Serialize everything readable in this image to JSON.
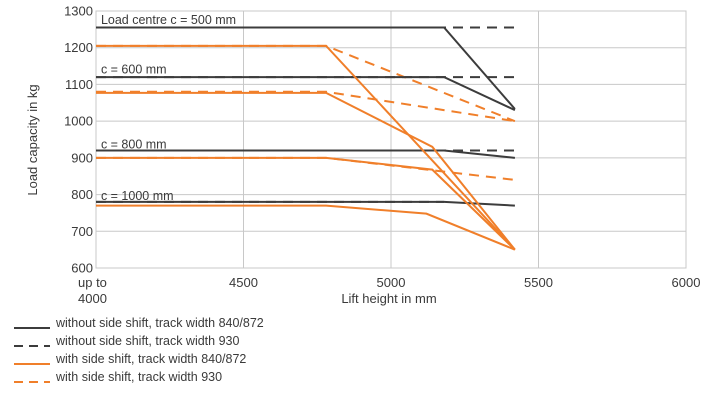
{
  "chart_data": {
    "type": "line",
    "xlabel": "Lift height in mm",
    "ylabel": "Load capacity in kg",
    "xlim": [
      4000,
      6000
    ],
    "ylim": [
      600,
      1300
    ],
    "x_ticks": [
      {
        "value": 4000,
        "lines": [
          "up to",
          "4000"
        ]
      },
      {
        "value": 4500,
        "lines": [
          "4500"
        ]
      },
      {
        "value": 5000,
        "lines": [
          "5000"
        ]
      },
      {
        "value": 5500,
        "lines": [
          "5500"
        ]
      },
      {
        "value": 6000,
        "lines": [
          "6000"
        ]
      }
    ],
    "y_ticks": [
      600,
      700,
      800,
      900,
      1000,
      1100,
      1200,
      1300
    ],
    "grid": true,
    "annotations": [
      {
        "text": "Load centre c = 500 mm",
        "x": 4010,
        "y": 1265
      },
      {
        "text": "c = 600 mm",
        "x": 4010,
        "y": 1130
      },
      {
        "text": "c = 800 mm",
        "x": 4010,
        "y": 925
      },
      {
        "text": "c = 1000 mm",
        "x": 4010,
        "y": 785
      }
    ],
    "styles": {
      "without_840": {
        "color": "#3c3c3c",
        "dash": "solid"
      },
      "without_930": {
        "color": "#3c3c3c",
        "dash": "dashed"
      },
      "with_840": {
        "color": "#f07f2a",
        "dash": "solid"
      },
      "with_930": {
        "color": "#f07f2a",
        "dash": "dashed"
      }
    },
    "series": [
      {
        "style": "without_930",
        "x": [
          4000,
          5180,
          5420
        ],
        "y": [
          1255,
          1255,
          1255
        ]
      },
      {
        "style": "without_930",
        "x": [
          4000,
          5180,
          5420
        ],
        "y": [
          1120,
          1120,
          1120
        ]
      },
      {
        "style": "without_930",
        "x": [
          4000,
          5180,
          5420
        ],
        "y": [
          920,
          920,
          920
        ]
      },
      {
        "style": "without_930",
        "x": [
          4000,
          5180
        ],
        "y": [
          780,
          780
        ]
      },
      {
        "style": "with_930",
        "x": [
          4000,
          4780,
          5420
        ],
        "y": [
          1205,
          1205,
          1000
        ]
      },
      {
        "style": "with_930",
        "x": [
          4000,
          4780,
          5420
        ],
        "y": [
          1080,
          1080,
          1000
        ]
      },
      {
        "style": "with_930",
        "x": [
          4000,
          4780,
          5420
        ],
        "y": [
          900,
          900,
          840
        ]
      },
      {
        "style": "without_840",
        "x": [
          4000,
          5180,
          5420
        ],
        "y": [
          1255,
          1255,
          1033
        ]
      },
      {
        "style": "without_840",
        "x": [
          4000,
          5180,
          5420
        ],
        "y": [
          1120,
          1120,
          1030
        ]
      },
      {
        "style": "without_840",
        "x": [
          4000,
          5180,
          5420
        ],
        "y": [
          920,
          920,
          900
        ]
      },
      {
        "style": "without_840",
        "x": [
          4000,
          5180,
          5420
        ],
        "y": [
          780,
          780,
          770
        ]
      },
      {
        "style": "with_840",
        "x": [
          4000,
          4780,
          5420
        ],
        "y": [
          1205,
          1205,
          650
        ]
      },
      {
        "style": "with_840",
        "x": [
          4000,
          4780,
          5140,
          5420
        ],
        "y": [
          1077,
          1077,
          930,
          650
        ]
      },
      {
        "style": "with_840",
        "x": [
          4000,
          4780,
          5140,
          5420
        ],
        "y": [
          900,
          900,
          868,
          650
        ]
      },
      {
        "style": "with_840",
        "x": [
          4000,
          4780,
          5120,
          5420
        ],
        "y": [
          770,
          770,
          748,
          650
        ]
      }
    ],
    "legend": {
      "placement": "bottom-left",
      "entries": [
        {
          "style": "without_840",
          "label": "without side shift, track width 840/872"
        },
        {
          "style": "without_930",
          "label": "without side shift, track width 930"
        },
        {
          "style": "with_840",
          "label": "with side shift, track width 840/872"
        },
        {
          "style": "with_930",
          "label": "with side shift, track width 930"
        }
      ]
    }
  }
}
